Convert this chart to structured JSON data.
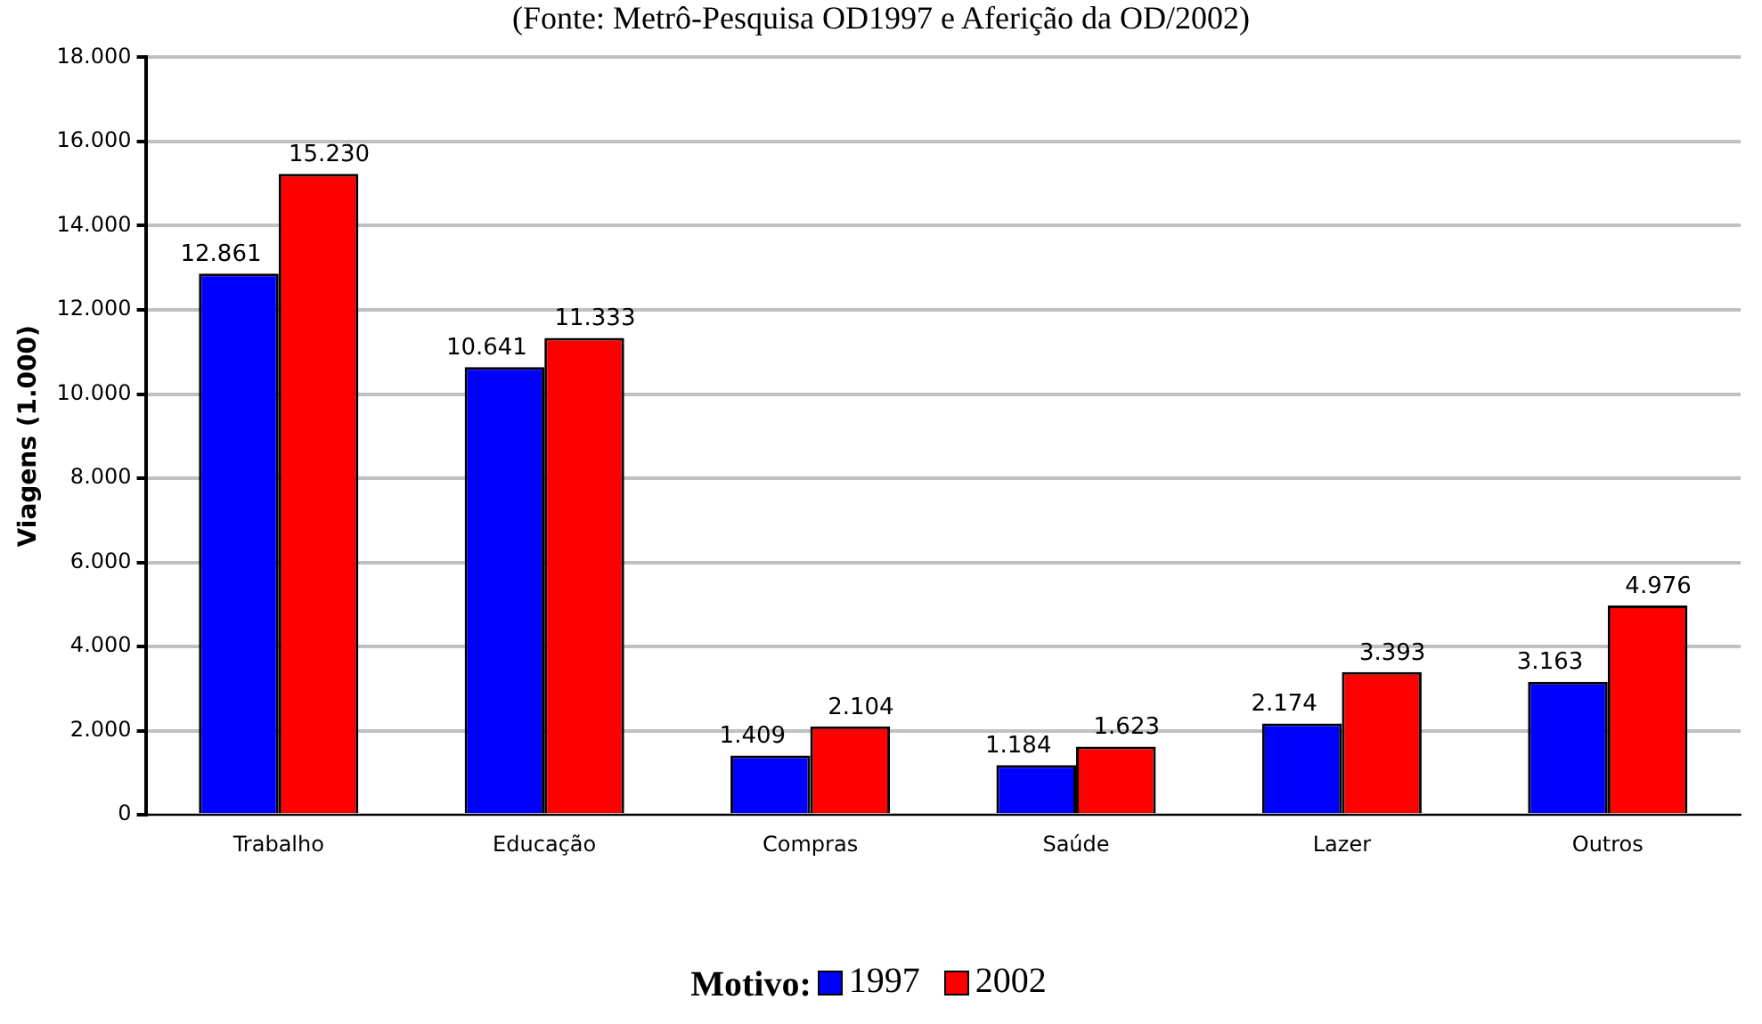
{
  "chart_data": {
    "type": "bar",
    "subtitle": "(Fonte: Metrô-Pesquisa OD1997 e Aferição da OD/2002)",
    "ylabel": "Viagens (1.000)",
    "legend_title": "Motivo:",
    "categories": [
      "Trabalho",
      "Educação",
      "Compras",
      "Saúde",
      "Lazer",
      "Outros"
    ],
    "series": [
      {
        "name": "1997",
        "color": "#0000ff",
        "values": [
          12861,
          10641,
          1409,
          1184,
          2174,
          3163
        ],
        "value_labels": [
          "12.861",
          "10.641",
          "1.409",
          "1.184",
          "2.174",
          "3.163"
        ]
      },
      {
        "name": "2002",
        "color": "#ff0000",
        "values": [
          15230,
          11333,
          2104,
          1623,
          3393,
          4976
        ],
        "value_labels": [
          "15.230",
          "11.333",
          "2.104",
          "1.623",
          "3.393",
          "4.976"
        ]
      }
    ],
    "ylim": [
      0,
      18000
    ],
    "yticks": [
      {
        "value": 0,
        "label": "0"
      },
      {
        "value": 2000,
        "label": "2.000"
      },
      {
        "value": 4000,
        "label": "4.000"
      },
      {
        "value": 6000,
        "label": "6.000"
      },
      {
        "value": 8000,
        "label": "8.000"
      },
      {
        "value": 10000,
        "label": "10.000"
      },
      {
        "value": 12000,
        "label": "12.000"
      },
      {
        "value": 14000,
        "label": "14.000"
      },
      {
        "value": 16000,
        "label": "16.000"
      },
      {
        "value": 18000,
        "label": "18.000"
      }
    ],
    "grid": "y",
    "legend": "bottom"
  }
}
